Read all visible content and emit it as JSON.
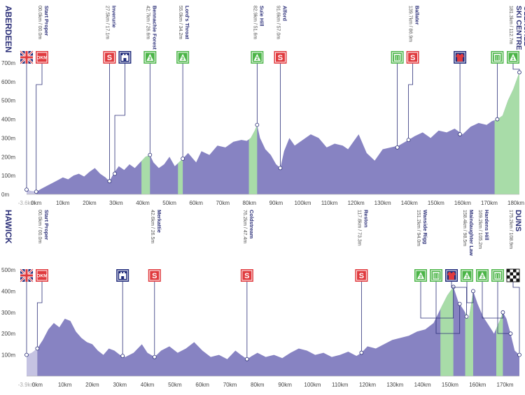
{
  "chart_data": [
    {
      "type": "area",
      "title": "",
      "start_label": "ABERDEEN",
      "end_label": "GLENSHEE SKI CENTRE",
      "xlim": [
        -3.6,
        181.3
      ],
      "ylim": [
        0,
        700
      ],
      "x_ticks": [
        -3.6,
        0,
        10,
        20,
        30,
        40,
        50,
        60,
        70,
        80,
        90,
        100,
        110,
        120,
        130,
        140,
        150,
        160,
        170,
        180
      ],
      "x_tick_labels": [
        "-3.6km",
        "0km",
        "10km",
        "20km",
        "30km",
        "40km",
        "50km",
        "60km",
        "70km",
        "80km",
        "90km",
        "100km",
        "110km",
        "120km",
        "130km",
        "140km",
        "150km",
        "160km",
        "170km",
        "180km"
      ],
      "y_ticks": [
        0,
        100,
        200,
        300,
        400,
        500,
        600,
        700
      ],
      "y_tick_labels": [
        "0m",
        "100m",
        "200m",
        "300m",
        "400m",
        "500m",
        "600m",
        "700m"
      ],
      "profile": {
        "x": [
          -3.6,
          -2,
          0,
          2,
          4,
          6,
          8,
          10,
          12,
          14,
          16,
          18,
          20,
          22,
          24,
          26,
          27.5,
          29,
          31,
          33,
          35,
          37,
          39,
          41,
          42.7,
          44,
          46,
          48,
          50,
          52,
          55,
          57,
          60,
          62,
          65,
          68,
          71,
          74,
          77,
          79,
          80.5,
          82,
          82.9,
          84,
          86,
          88,
          90,
          91.6,
          93,
          95,
          97,
          100,
          103,
          106,
          109,
          112,
          115,
          117,
          119,
          121,
          124,
          127,
          130,
          133,
          136,
          139.7,
          142,
          145,
          148,
          151,
          154,
          157,
          160,
          163,
          166,
          169,
          171,
          173,
          175,
          177,
          179,
          180.5,
          181.3
        ],
        "y": [
          25,
          18,
          14,
          30,
          45,
          60,
          75,
          90,
          80,
          100,
          110,
          95,
          120,
          140,
          110,
          90,
          70,
          110,
          150,
          130,
          160,
          140,
          170,
          200,
          210,
          170,
          140,
          160,
          200,
          150,
          190,
          220,
          170,
          230,
          210,
          260,
          250,
          280,
          290,
          285,
          300,
          340,
          370,
          300,
          240,
          210,
          160,
          140,
          230,
          300,
          260,
          290,
          320,
          300,
          250,
          270,
          260,
          240,
          280,
          320,
          220,
          180,
          240,
          250,
          260,
          290,
          310,
          330,
          300,
          340,
          330,
          350,
          320,
          360,
          380,
          370,
          390,
          400,
          420,
          500,
          560,
          620,
          650
        ]
      },
      "climbs": [
        [
          39.5,
          42.7
        ],
        [
          53.2,
          55.0
        ],
        [
          79.8,
          82.9
        ],
        [
          172.0,
          181.3
        ]
      ],
      "points": [
        {
          "km": -3.6,
          "elev": 25,
          "icon": "flag-uk",
          "label": ""
        },
        {
          "km": 0,
          "elev": 14,
          "icon": "okm",
          "label": "Start Proper",
          "sublabel": "00.0km / 00.0m"
        },
        {
          "km": 27.5,
          "elev": 70,
          "icon": "sprint",
          "label": "Inverurie",
          "sublabel": "27.5km / 17.1m"
        },
        {
          "km": 29.5,
          "elev": 110,
          "icon": "castle",
          "label": "",
          "sublabel": ""
        },
        {
          "km": 42.7,
          "elev": 210,
          "icon": "kom3",
          "label": "Bennachie Forest",
          "sublabel": "42.7km / 26.6m"
        },
        {
          "km": 55.0,
          "elev": 190,
          "icon": "kom3",
          "label": "Lord's Throat",
          "sublabel": "55.0km / 34.2m"
        },
        {
          "km": 82.9,
          "elev": 370,
          "icon": "kom2",
          "label": "Suie Hill",
          "sublabel": "82.9km / 51.6m"
        },
        {
          "km": 91.6,
          "elev": 140,
          "icon": "sprint",
          "label": "Alford",
          "sublabel": "91.6km / 57.0m"
        },
        {
          "km": 135.5,
          "elev": 250,
          "icon": "feed",
          "label": "",
          "sublabel": ""
        },
        {
          "km": 139.7,
          "elev": 290,
          "icon": "sprint",
          "label": "Ballater",
          "sublabel": "139.7km / 86.9m"
        },
        {
          "km": 159.0,
          "elev": 320,
          "icon": "jersey",
          "label": "",
          "sublabel": ""
        },
        {
          "km": 173.0,
          "elev": 400,
          "icon": "feed",
          "label": "",
          "sublabel": ""
        },
        {
          "km": 181.3,
          "elev": 650,
          "icon": "kom1",
          "label": "",
          "sublabel": "181.3km / 112.7m"
        }
      ],
      "badge_texts": {
        "okm": "OKM",
        "sprint": "S",
        "kom1": "1",
        "kom2": "2",
        "kom3": "3"
      }
    },
    {
      "type": "area",
      "title": "",
      "start_label": "HAWICK",
      "end_label": "DUNS",
      "xlim": [
        -3.9,
        175.2
      ],
      "ylim": [
        0,
        500
      ],
      "x_ticks": [
        -3.9,
        0,
        10,
        20,
        30,
        40,
        50,
        60,
        70,
        80,
        90,
        100,
        110,
        120,
        130,
        140,
        150,
        160,
        170
      ],
      "x_tick_labels": [
        "-3.9km",
        "0km",
        "10km",
        "20km",
        "30km",
        "40km",
        "50km",
        "60km",
        "70km",
        "80km",
        "90km",
        "100km",
        "110km",
        "120km",
        "130km",
        "140km",
        "150km",
        "160km",
        "170km"
      ],
      "y_ticks": [
        100,
        200,
        300,
        400,
        500
      ],
      "y_tick_labels": [
        "100m",
        "200m",
        "300m",
        "400m",
        "500m"
      ],
      "profile": {
        "x": [
          -3.9,
          -2,
          0,
          2,
          4,
          6,
          8,
          10,
          12,
          14,
          16,
          18,
          20,
          22,
          24,
          26,
          28,
          30,
          32,
          35,
          38,
          40,
          42.6,
          45,
          48,
          51,
          54,
          57,
          60,
          63,
          66,
          69,
          72,
          74,
          76.2,
          78,
          80,
          83,
          86,
          89,
          92,
          95,
          98,
          101,
          104,
          107,
          110,
          113,
          116,
          117.8,
          120,
          123,
          126,
          129,
          132,
          135,
          138,
          141,
          144,
          147,
          149,
          151.2,
          153,
          155,
          156.8,
          158.4,
          160,
          162,
          164,
          166,
          168,
          169.2,
          170.5,
          172,
          173.5,
          175.2
        ],
        "y": [
          100,
          110,
          130,
          170,
          220,
          250,
          230,
          270,
          260,
          210,
          180,
          160,
          150,
          120,
          100,
          130,
          120,
          100,
          90,
          110,
          150,
          110,
          90,
          120,
          140,
          110,
          130,
          160,
          120,
          90,
          100,
          80,
          120,
          100,
          80,
          95,
          110,
          90,
          100,
          85,
          110,
          130,
          120,
          100,
          110,
          90,
          100,
          115,
          95,
          110,
          140,
          130,
          150,
          170,
          180,
          190,
          210,
          220,
          250,
          330,
          380,
          420,
          350,
          310,
          270,
          400,
          340,
          280,
          240,
          200,
          260,
          300,
          270,
          200,
          120,
          100
        ]
      },
      "climbs": [
        [
          146.5,
          151.2
        ],
        [
          155.5,
          158.4
        ],
        [
          166.8,
          169.2
        ]
      ],
      "points": [
        {
          "km": -3.9,
          "elev": 100,
          "icon": "flag-uk",
          "label": ""
        },
        {
          "km": 0,
          "elev": 130,
          "icon": "okm",
          "label": "Start Proper",
          "sublabel": "00.0km / 00.0m"
        },
        {
          "km": 31.0,
          "elev": 95,
          "icon": "castle",
          "label": "",
          "sublabel": ""
        },
        {
          "km": 42.6,
          "elev": 90,
          "icon": "sprint",
          "label": "Merkattie",
          "sublabel": "42.6km / 26.5m"
        },
        {
          "km": 76.2,
          "elev": 80,
          "icon": "sprint",
          "label": "Coldstream",
          "sublabel": "76.2km / 47.4m"
        },
        {
          "km": 117.8,
          "elev": 110,
          "icon": "sprint",
          "label": "Reston",
          "sublabel": "117.8km / 73.3m"
        },
        {
          "km": 151.2,
          "elev": 420,
          "icon": "kom3",
          "label": "Wanside Rigg",
          "sublabel": "151.2km / 94.0m"
        },
        {
          "km": 153.5,
          "elev": 340,
          "icon": "feed",
          "label": "",
          "sublabel": ""
        },
        {
          "km": 156.0,
          "elev": 280,
          "icon": "jersey",
          "label": "",
          "sublabel": ""
        },
        {
          "km": 158.4,
          "elev": 400,
          "icon": "kom3",
          "label": "Maindaughter Law",
          "sublabel": "158.4km / 98.5m"
        },
        {
          "km": 169.2,
          "elev": 300,
          "icon": "kom3",
          "label": "Hardens Hill",
          "sublabel": "169.2km / 105.2m"
        },
        {
          "km": 172.0,
          "elev": 200,
          "icon": "feed",
          "label": "",
          "sublabel": ""
        },
        {
          "km": 175.2,
          "elev": 100,
          "icon": "finish",
          "label": "",
          "sublabel": "175.2km / 108.9m"
        }
      ],
      "badge_texts": {
        "okm": "OKM",
        "sprint": "S",
        "kom1": "1",
        "kom2": "2",
        "kom3": "3"
      }
    }
  ],
  "colors": {
    "profile_fill": "#8783c2",
    "profile_start": "#c5c3e2",
    "climb_fill": "#a8dca8",
    "sprint": "#e03a3e",
    "okm": "#e03a3e",
    "kom": "#4cb548",
    "castle": "#1f2a7a",
    "jersey": "#1f2a7a",
    "feed": "#4cb548",
    "finish": "#111111",
    "flag_blue": "#1f2a7a",
    "text_dark": "#2b2f78",
    "axis_text": "#444444",
    "leader_line": "#2b2f78"
  }
}
